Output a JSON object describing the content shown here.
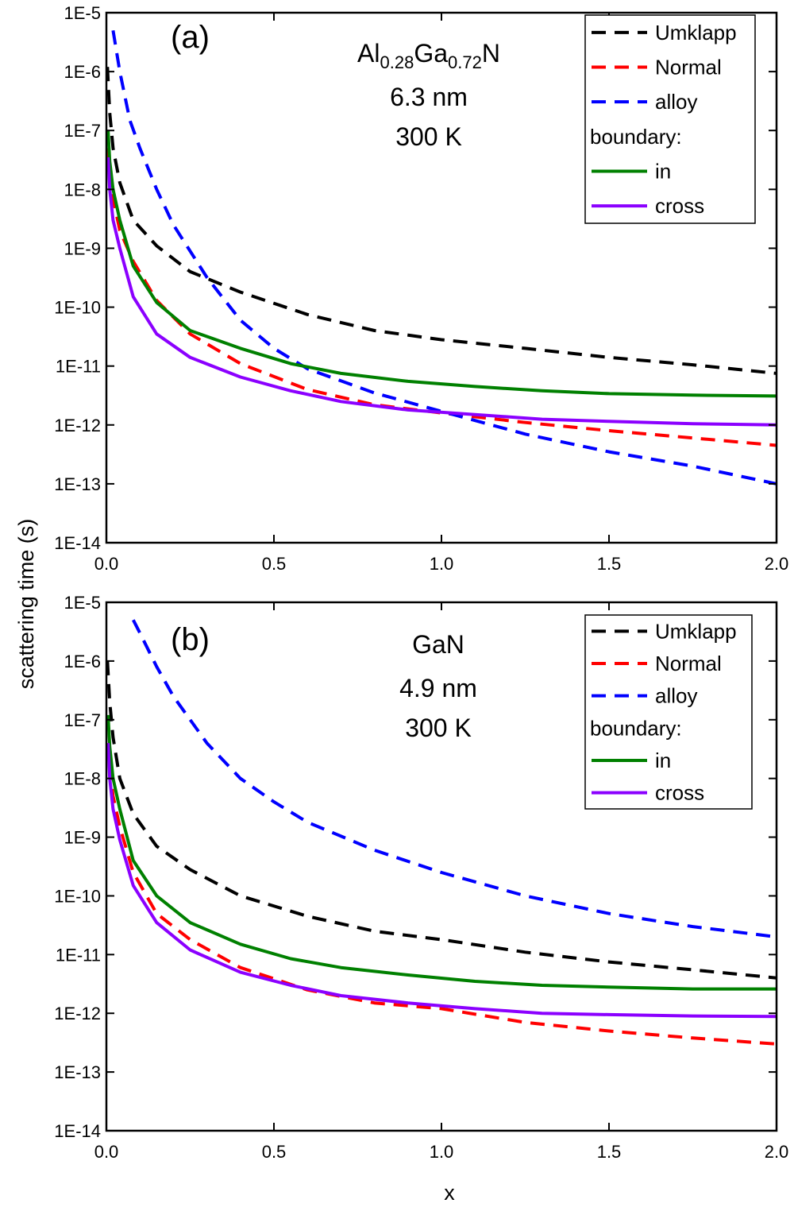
{
  "figure": {
    "ylabel": "scattering time (s)",
    "xlabel": "x"
  },
  "colors": {
    "umklapp": "#000000",
    "normal": "#ff0000",
    "alloy": "#0000ff",
    "in": "#008000",
    "cross": "#8b00ff"
  },
  "chart_data": [
    {
      "type": "line",
      "panel_label": "(a)",
      "annotation": {
        "material": {
          "prefix": "Al",
          "sub1": "0.28",
          "mid": "Ga",
          "sub2": "0.72",
          "suffix": "N"
        },
        "thickness": "6.3 nm",
        "temperature": "300 K"
      },
      "y_scale": "log",
      "xlim": [
        0.0,
        2.0
      ],
      "ylim": [
        1e-14,
        1e-05
      ],
      "x_ticks": [
        "0.0",
        "0.5",
        "1.0",
        "1.5",
        "2.0"
      ],
      "y_ticks": [
        "1E-14",
        "1E-13",
        "1E-12",
        "1E-11",
        "1E-10",
        "1E-9",
        "1E-8",
        "1E-7",
        "1E-6",
        "1E-5"
      ],
      "legend": {
        "position": "top-right",
        "entries": [
          "Umklapp",
          "Normal",
          "alloy",
          "boundary:",
          "in",
          "cross"
        ]
      },
      "series": [
        {
          "name": "Umklapp",
          "style": "dashed",
          "color": "#000000",
          "x": [
            0.003,
            0.01,
            0.02,
            0.04,
            0.08,
            0.15,
            0.25,
            0.4,
            0.6,
            0.8,
            1.0,
            1.25,
            1.5,
            1.75,
            2.0
          ],
          "y": [
            1.2e-06,
            2e-07,
            5e-08,
            1.3e-08,
            3e-09,
            1.1e-09,
            4e-10,
            1.8e-10,
            7.5e-11,
            4e-11,
            2.8e-11,
            2e-11,
            1.4e-11,
            1.05e-11,
            7.5e-12
          ]
        },
        {
          "name": "Normal",
          "style": "dashed",
          "color": "#ff0000",
          "x": [
            0.005,
            0.01,
            0.02,
            0.04,
            0.08,
            0.15,
            0.25,
            0.4,
            0.6,
            0.8,
            1.0,
            1.25,
            1.5,
            1.75,
            2.0
          ],
          "y": [
            5e-08,
            2e-08,
            7e-09,
            2e-09,
            6e-10,
            1.3e-10,
            3.5e-11,
            1.1e-11,
            4e-12,
            2.2e-12,
            1.6e-12,
            1.1e-12,
            8e-13,
            6e-13,
            4.5e-13
          ]
        },
        {
          "name": "alloy",
          "style": "dashed",
          "color": "#0000ff",
          "x": [
            0.02,
            0.04,
            0.07,
            0.1,
            0.15,
            0.2,
            0.3,
            0.4,
            0.5,
            0.6,
            0.8,
            1.0,
            1.25,
            1.5,
            1.75,
            2.0
          ],
          "y": [
            5e-06,
            1e-06,
            1.5e-07,
            5e-08,
            1e-08,
            2.5e-09,
            3.2e-10,
            6e-11,
            2e-11,
            9e-12,
            3.5e-12,
            1.7e-12,
            7e-13,
            3.5e-13,
            2e-13,
            1e-13
          ]
        },
        {
          "name": "in",
          "style": "solid",
          "color": "#008000",
          "x": [
            0.005,
            0.01,
            0.02,
            0.04,
            0.08,
            0.15,
            0.25,
            0.4,
            0.55,
            0.7,
            0.9,
            1.1,
            1.3,
            1.5,
            1.75,
            2.0
          ],
          "y": [
            1e-07,
            3e-08,
            1e-08,
            3e-09,
            5e-10,
            1.2e-10,
            4e-11,
            2e-11,
            1.1e-11,
            7.5e-12,
            5.5e-12,
            4.5e-12,
            3.8e-12,
            3.4e-12,
            3.2e-12,
            3.1e-12
          ]
        },
        {
          "name": "cross",
          "style": "solid",
          "color": "#8b00ff",
          "x": [
            0.005,
            0.01,
            0.02,
            0.04,
            0.08,
            0.15,
            0.25,
            0.4,
            0.55,
            0.7,
            0.9,
            1.1,
            1.3,
            1.5,
            1.75,
            2.0
          ],
          "y": [
            3.5e-08,
            1e-08,
            3e-09,
            1e-09,
            1.5e-10,
            3.5e-11,
            1.4e-11,
            6.5e-12,
            3.8e-12,
            2.5e-12,
            1.8e-12,
            1.5e-12,
            1.25e-12,
            1.15e-12,
            1.05e-12,
            1e-12
          ]
        }
      ]
    },
    {
      "type": "line",
      "panel_label": "(b)",
      "annotation": {
        "material": {
          "prefix": "GaN",
          "sub1": "",
          "mid": "",
          "sub2": "",
          "suffix": ""
        },
        "thickness": "4.9 nm",
        "temperature": "300 K"
      },
      "y_scale": "log",
      "xlim": [
        0.0,
        2.0
      ],
      "ylim": [
        1e-14,
        1e-05
      ],
      "x_ticks": [
        "0.0",
        "0.5",
        "1.0",
        "1.5",
        "2.0"
      ],
      "y_ticks": [
        "1E-14",
        "1E-13",
        "1E-12",
        "1E-11",
        "1E-10",
        "1E-9",
        "1E-8",
        "1E-7",
        "1E-6",
        "1E-5"
      ],
      "legend": {
        "position": "top-right",
        "entries": [
          "Umklapp",
          "Normal",
          "alloy",
          "boundary:",
          "in",
          "cross"
        ]
      },
      "series": [
        {
          "name": "Umklapp",
          "style": "dashed",
          "color": "#000000",
          "x": [
            0.003,
            0.01,
            0.02,
            0.04,
            0.08,
            0.15,
            0.25,
            0.4,
            0.6,
            0.8,
            1.0,
            1.25,
            1.5,
            1.75,
            2.0
          ],
          "y": [
            1e-06,
            2e-07,
            5e-08,
            1e-08,
            2.5e-09,
            7e-10,
            2.8e-10,
            1e-10,
            4.5e-11,
            2.5e-11,
            1.8e-11,
            1.1e-11,
            7.5e-12,
            5.5e-12,
            4e-12
          ]
        },
        {
          "name": "Normal",
          "style": "dashed",
          "color": "#ff0000",
          "x": [
            0.005,
            0.01,
            0.02,
            0.04,
            0.08,
            0.15,
            0.25,
            0.4,
            0.6,
            0.8,
            1.0,
            1.25,
            1.5,
            1.75,
            2.0
          ],
          "y": [
            4e-08,
            1.5e-08,
            5e-09,
            1.5e-09,
            2.5e-10,
            5e-11,
            1.8e-11,
            6e-12,
            2.5e-12,
            1.5e-12,
            1.2e-12,
            7e-13,
            5e-13,
            3.8e-13,
            3e-13
          ]
        },
        {
          "name": "alloy",
          "style": "dashed",
          "color": "#0000ff",
          "x": [
            0.08,
            0.1,
            0.15,
            0.2,
            0.3,
            0.4,
            0.5,
            0.6,
            0.8,
            1.0,
            1.25,
            1.5,
            1.75,
            2.0
          ],
          "y": [
            5e-06,
            3e-06,
            8e-07,
            2.5e-07,
            4e-08,
            1e-08,
            4e-09,
            1.8e-09,
            6e-10,
            2.5e-10,
            1e-10,
            5e-11,
            3e-11,
            2e-11
          ]
        },
        {
          "name": "in",
          "style": "solid",
          "color": "#008000",
          "x": [
            0.005,
            0.01,
            0.02,
            0.04,
            0.08,
            0.15,
            0.25,
            0.4,
            0.55,
            0.7,
            0.9,
            1.1,
            1.3,
            1.5,
            1.75,
            2.0
          ],
          "y": [
            1.2e-07,
            3.5e-08,
            1e-08,
            3e-09,
            4e-10,
            1e-10,
            3.5e-11,
            1.5e-11,
            8.5e-12,
            6e-12,
            4.5e-12,
            3.5e-12,
            3e-12,
            2.8e-12,
            2.6e-12,
            2.6e-12
          ]
        },
        {
          "name": "cross",
          "style": "solid",
          "color": "#8b00ff",
          "x": [
            0.005,
            0.01,
            0.02,
            0.04,
            0.08,
            0.15,
            0.25,
            0.4,
            0.55,
            0.7,
            0.9,
            1.1,
            1.3,
            1.5,
            1.75,
            2.0
          ],
          "y": [
            4e-08,
            1e-08,
            3e-09,
            9e-10,
            1.5e-10,
            3.5e-11,
            1.2e-11,
            5e-12,
            3e-12,
            2e-12,
            1.5e-12,
            1.2e-12,
            1e-12,
            9.5e-13,
            9e-13,
            8.8e-13
          ]
        }
      ]
    }
  ]
}
